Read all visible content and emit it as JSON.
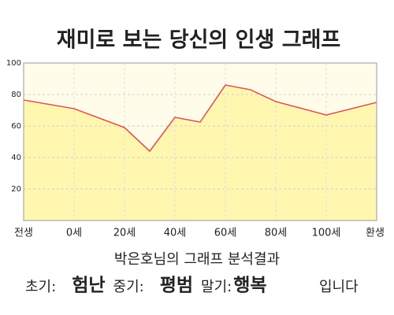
{
  "chart_data": {
    "type": "area",
    "title": "재미로 보는 당신의 인생 그래프",
    "x": [
      -20,
      0,
      20,
      30,
      40,
      50,
      60,
      70,
      80,
      100,
      120
    ],
    "values": [
      76.5,
      71,
      59,
      44,
      65.5,
      62.5,
      86,
      83,
      75.5,
      67,
      75
    ],
    "color": "#e05555",
    "fill": "#fff7b0",
    "background": "#fffde9",
    "xlim": [
      -20,
      120
    ],
    "xticks": [
      {
        "value": -20,
        "label": "전생"
      },
      {
        "value": 0,
        "label": "0세"
      },
      {
        "value": 20,
        "label": "20세"
      },
      {
        "value": 40,
        "label": "40세"
      },
      {
        "value": 60,
        "label": "60세"
      },
      {
        "value": 80,
        "label": "80세"
      },
      {
        "value": 100,
        "label": "100세"
      },
      {
        "value": 120,
        "label": "환생"
      }
    ],
    "ylim": [
      0,
      100
    ],
    "yticks": [
      20,
      40,
      60,
      80,
      100
    ],
    "grid": true
  },
  "result": {
    "heading": "박은호님의 그래프 분석결과",
    "items": [
      {
        "label": "초기:",
        "value": "험난"
      },
      {
        "label": "중기:",
        "value": "평범"
      },
      {
        "label": "말기:",
        "value": "행복"
      }
    ],
    "suffix": "입니다"
  }
}
